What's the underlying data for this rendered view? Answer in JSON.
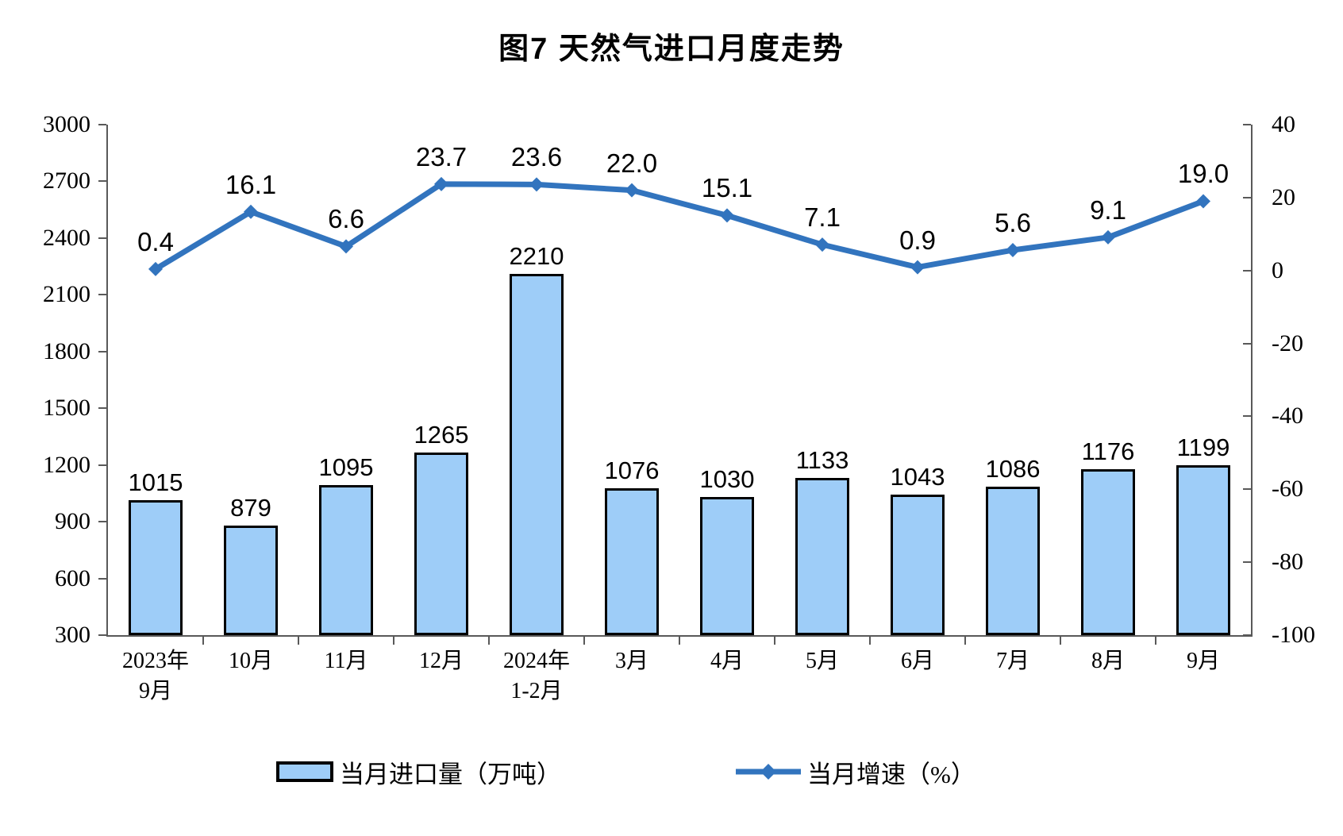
{
  "title": "图7 天然气进口月度走势",
  "chart_data": {
    "type": "bar",
    "subtype": "bar+line combo, dual y-axes",
    "categories": [
      "2023年\n9月",
      "10月",
      "11月",
      "12月",
      "2024年\n1-2月",
      "3月",
      "4月",
      "5月",
      "6月",
      "7月",
      "8月",
      "9月"
    ],
    "series": [
      {
        "name": "当月进口量（万吨）",
        "type": "bar",
        "axis": "left",
        "values": [
          1015,
          879,
          1095,
          1265,
          2210,
          1076,
          1030,
          1133,
          1043,
          1086,
          1176,
          1199
        ],
        "fill_color": "#9ECDF8",
        "border_color": "#000000"
      },
      {
        "name": "当月增速（%）",
        "type": "line",
        "axis": "right",
        "marker": "diamond",
        "values": [
          0.4,
          16.1,
          6.6,
          23.7,
          23.6,
          22.0,
          15.1,
          7.1,
          0.9,
          5.6,
          9.1,
          19.0
        ],
        "color": "#3274BE"
      }
    ],
    "left_axis": {
      "min": 300,
      "max": 3000,
      "ticks": [
        3000,
        2700,
        2400,
        2100,
        1800,
        1500,
        1200,
        900,
        600,
        300
      ]
    },
    "right_axis": {
      "min": -100,
      "max": 40,
      "ticks": [
        40,
        20,
        0,
        -20,
        -40,
        -60,
        -80,
        -100
      ]
    },
    "grid": "off",
    "legend_position": "bottom",
    "legend": [
      "当月进口量（万吨）",
      "当月增速（%）"
    ]
  }
}
